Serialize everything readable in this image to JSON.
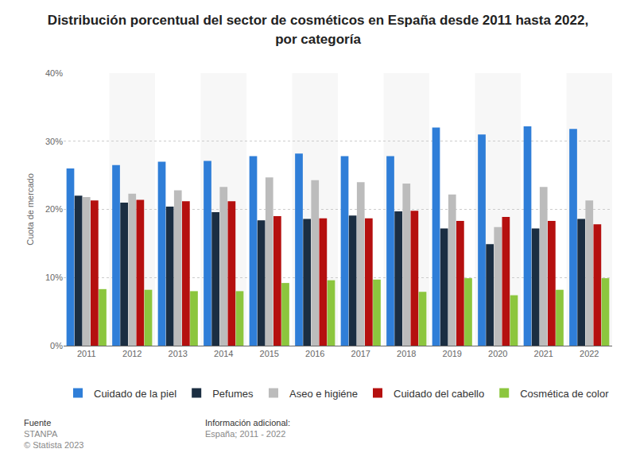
{
  "chart_data": {
    "type": "bar",
    "title": "Distribución porcentual del sector de cosméticos en España desde 2011 hasta 2022, por categoría",
    "y_label": "Cuota de mercado",
    "categories": [
      "2011",
      "2012",
      "2013",
      "2014",
      "2015",
      "2016",
      "2017",
      "2018",
      "2019",
      "2020",
      "2021",
      "2022"
    ],
    "series": [
      {
        "name": "Cuidado de la piel",
        "color": "#2f7ed8",
        "values": [
          26,
          26.5,
          27,
          27.1,
          27.8,
          28.2,
          27.8,
          27.8,
          32,
          31,
          32.2,
          31.8
        ]
      },
      {
        "name": "Pefumes",
        "color": "#1b2e42",
        "values": [
          22,
          21,
          20.4,
          19.6,
          18.4,
          18.6,
          19.1,
          19.7,
          17.2,
          14.9,
          17.2,
          18.6
        ]
      },
      {
        "name": "Aseo e higiéne",
        "color": "#bcbcbc",
        "values": [
          21.8,
          22.3,
          22.8,
          23.3,
          24.7,
          24.3,
          24,
          23.8,
          22.2,
          17.4,
          23.3,
          21.3
        ]
      },
      {
        "name": "Cuidado del cabello",
        "color": "#b5100f",
        "values": [
          21.3,
          21.4,
          21.2,
          21.2,
          19,
          18.7,
          18.7,
          19.8,
          18.3,
          18.9,
          18.3,
          17.8
        ]
      },
      {
        "name": "Cosmética de color",
        "color": "#8cc63e",
        "values": [
          8.3,
          8.2,
          8,
          8,
          9.2,
          9.6,
          9.7,
          7.9,
          9.9,
          7.4,
          8.2,
          9.9
        ]
      }
    ],
    "ylim": [
      0,
      40
    ],
    "yticks": [
      {
        "value": 0,
        "label": "0%"
      },
      {
        "value": 10,
        "label": "10%"
      },
      {
        "value": 20,
        "label": "20%"
      },
      {
        "value": 30,
        "label": "30%"
      },
      {
        "value": 40,
        "label": "40%"
      }
    ],
    "grid": true,
    "legend": "bottom"
  },
  "footer": {
    "source_label": "Fuente",
    "source": "STANPA",
    "copyright": "© Statista 2023",
    "info_label": "Información adicional:",
    "info": "España; 2011 - 2022"
  }
}
